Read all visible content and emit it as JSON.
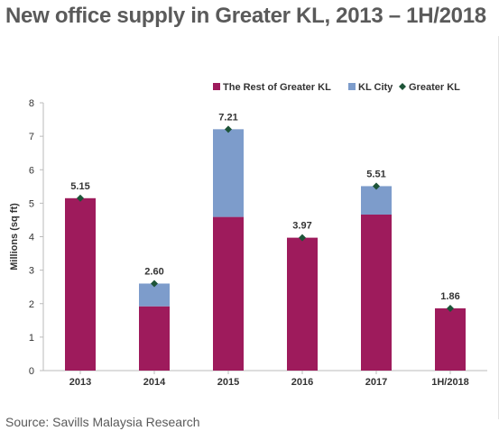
{
  "title": "New office supply in Greater KL, 2013 – 1H/2018",
  "source": "Source: Savills Malaysia Research",
  "chart_data": {
    "type": "bar",
    "stacked": true,
    "categories": [
      "2013",
      "2014",
      "2015",
      "2016",
      "2017",
      "1H/2018"
    ],
    "series": [
      {
        "name": "The Rest of Greater KL",
        "color": "#9e1b5c",
        "values": [
          5.15,
          1.92,
          4.59,
          3.97,
          4.66,
          1.86
        ]
      },
      {
        "name": "KL City",
        "color": "#7d9ccb",
        "values": [
          0.0,
          0.68,
          2.62,
          0.0,
          0.85,
          0.0
        ]
      }
    ],
    "marker_series": {
      "name": "Greater KL",
      "color": "#1d5438",
      "marker": "diamond",
      "values": [
        5.15,
        2.6,
        7.21,
        3.97,
        5.51,
        1.86
      ]
    },
    "data_labels": [
      "5.15",
      "2.60",
      "7.21",
      "3.97",
      "5.51",
      "1.86"
    ],
    "ylabel": "Millions (sq ft)",
    "xlabel": "",
    "ylim": [
      0,
      8
    ],
    "yticks": [
      "0",
      "1",
      "2",
      "3",
      "4",
      "5",
      "6",
      "7",
      "8"
    ],
    "grid": false,
    "legend_position": "top-right"
  }
}
